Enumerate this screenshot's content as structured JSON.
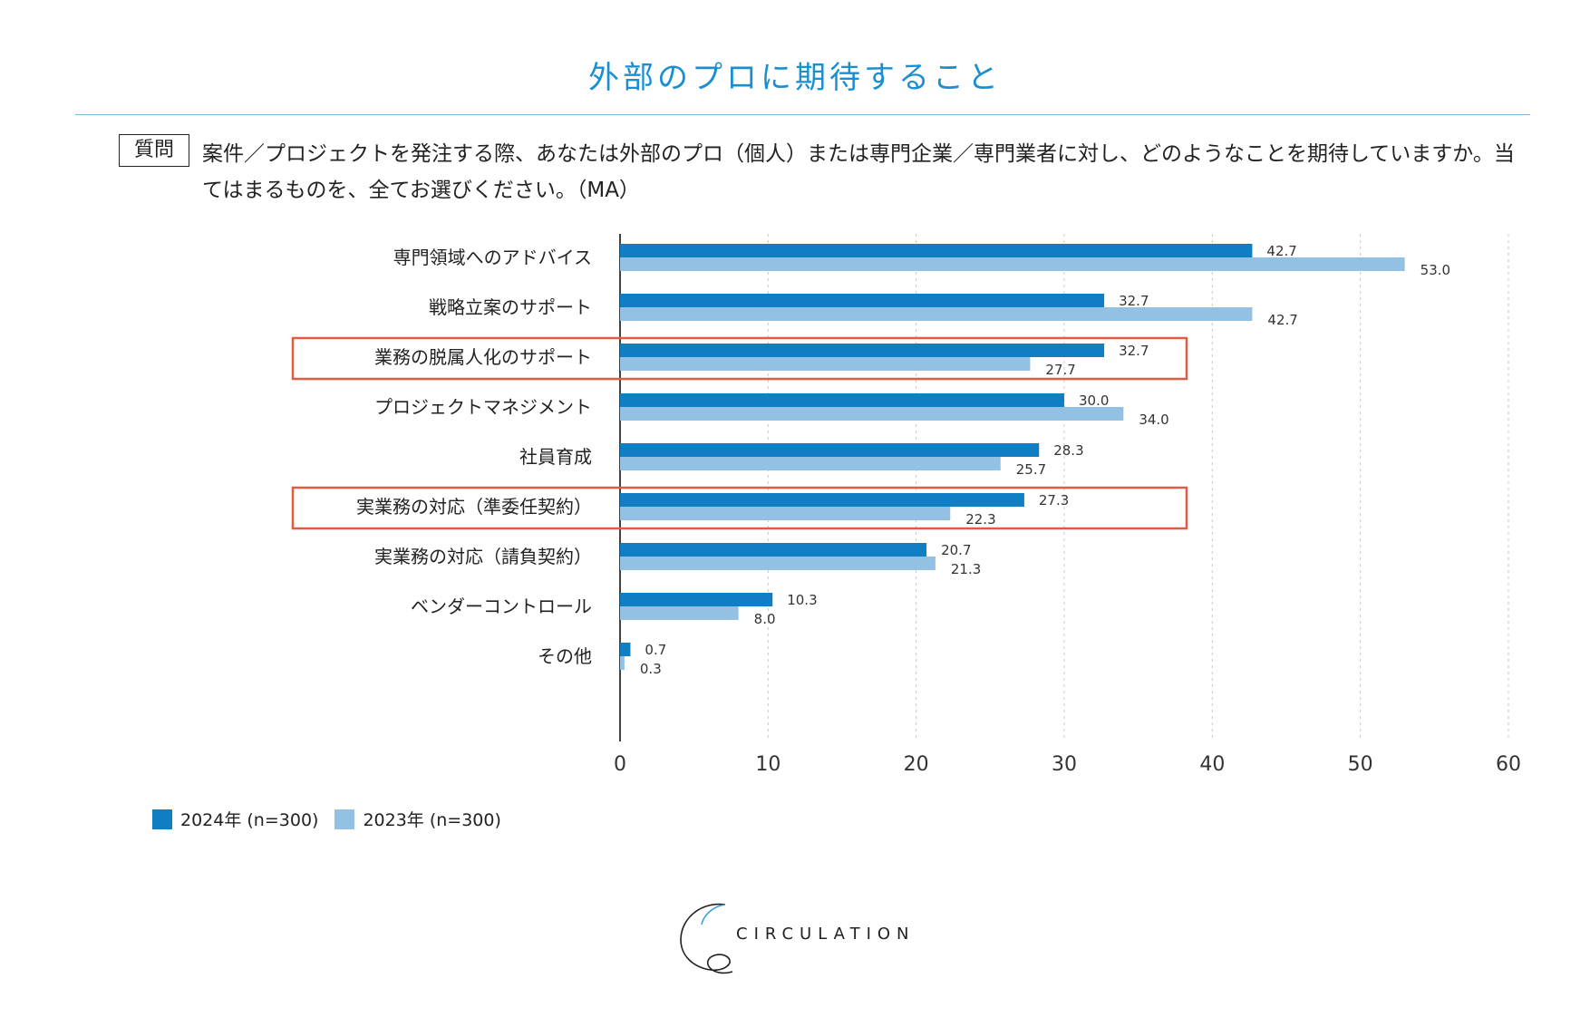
{
  "header": {
    "title": "外部のプロに期待すること",
    "question_badge": "質問",
    "question_text": "案件／プロジェクトを発注する際、あなたは外部のプロ（個人）または専門企業／専門業者に対し、どのようなことを期待していますか。当てはまるものを、全てお選びください。（MA）"
  },
  "chart_data": {
    "type": "bar",
    "orientation": "horizontal",
    "title": "外部のプロに期待すること",
    "categories": [
      "専門領域へのアドバイス",
      "戦略立案のサポート",
      "業務の脱属人化のサポート",
      "プロジェクトマネジメント",
      "社員育成",
      "実業務の対応（準委任契約）",
      "実業務の対応（請負契約）",
      "ベンダーコントロール",
      "その他"
    ],
    "series": [
      {
        "name": "2024年 (n=300)",
        "color": "#0f7ec2",
        "values": [
          42.7,
          32.7,
          32.7,
          30.0,
          28.3,
          27.3,
          20.7,
          10.3,
          0.7
        ],
        "labels": [
          "42.7",
          "32.7",
          "32.7",
          "30.0",
          "28.3",
          "27.3",
          "20.7",
          "10.3",
          "0.7"
        ]
      },
      {
        "name": "2023年 (n=300)",
        "color": "#93c1e3",
        "values": [
          53.0,
          42.7,
          27.7,
          34.0,
          25.7,
          22.3,
          21.3,
          8.0,
          0.3
        ],
        "labels": [
          "53.0",
          "42.7",
          "27.7",
          "34.0",
          "25.7",
          "22.3",
          "21.3",
          "8.0",
          "0.3"
        ]
      }
    ],
    "highlighted_categories": [
      "業務の脱属人化のサポート",
      "実業務の対応（準委任契約）"
    ],
    "highlight_color": "#e25a45",
    "xlim": [
      0,
      60
    ],
    "x_ticks": [
      "0",
      "10",
      "20",
      "30",
      "40",
      "50",
      "60"
    ],
    "grid": true,
    "legend_position": "bottom-left"
  },
  "footer": {
    "logo_text": "CIRCULATION"
  }
}
